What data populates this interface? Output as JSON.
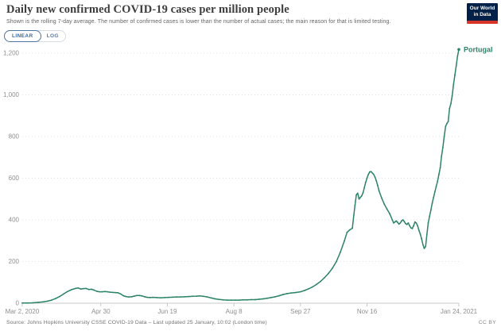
{
  "header": {
    "title": "Daily new confirmed COVID-19 cases per million people",
    "subtitle": "Shown is the rolling 7-day average. The number of confirmed cases is lower than the number of actual cases; the main reason for that is limited testing.",
    "logo_line1": "Our World",
    "logo_line2": "in Data"
  },
  "controls": {
    "linear_label": "LINEAR",
    "log_label": "LOG",
    "selected": "LINEAR"
  },
  "footer": {
    "source": "Source: Johns Hopkins University CSSE COVID-19 Data – Last updated 25 January, 10:02 (London time)",
    "license": "CC BY"
  },
  "colors": {
    "series_green": "#2c8465",
    "grid": "#e2e2e2",
    "axis": "#c8c8c8",
    "tick_text": "#8f8f8f",
    "logo_navy": "#002147",
    "logo_red": "#d8352a"
  },
  "chart_data": {
    "type": "line",
    "title": "Daily new confirmed COVID-19 cases per million people",
    "xlabel": "",
    "ylabel": "",
    "grid": "horizontal-dotted",
    "legend_position": "end-of-line-label",
    "ylim": [
      0,
      1200
    ],
    "y_ticks": [
      0,
      200,
      400,
      600,
      800,
      1000,
      1200
    ],
    "y_tick_labels": [
      "0",
      "200",
      "400",
      "600",
      "800",
      "1,000",
      "1,200"
    ],
    "xlim_days": [
      0,
      328
    ],
    "x_ticks": [
      {
        "label": "Mar 2, 2020",
        "day": 0
      },
      {
        "label": "Apr 30",
        "day": 59
      },
      {
        "label": "Jun 19",
        "day": 109
      },
      {
        "label": "Aug 8",
        "day": 159
      },
      {
        "label": "Sep 27",
        "day": 209
      },
      {
        "label": "Nov 16",
        "day": 259
      },
      {
        "label": "Jan 24, 2021",
        "day": 328
      }
    ],
    "series": [
      {
        "name": "Portugal",
        "color": "#2c8465",
        "points": [
          [
            0,
            1
          ],
          [
            4,
            1
          ],
          [
            8,
            2
          ],
          [
            12,
            4
          ],
          [
            16,
            7
          ],
          [
            19,
            10
          ],
          [
            22,
            15
          ],
          [
            25,
            22
          ],
          [
            28,
            32
          ],
          [
            31,
            44
          ],
          [
            34,
            56
          ],
          [
            37,
            65
          ],
          [
            40,
            71
          ],
          [
            42,
            73
          ],
          [
            44,
            68
          ],
          [
            46,
            70
          ],
          [
            48,
            71
          ],
          [
            50,
            66
          ],
          [
            52,
            67
          ],
          [
            54,
            63
          ],
          [
            56,
            57
          ],
          [
            58,
            55
          ],
          [
            60,
            55
          ],
          [
            62,
            56
          ],
          [
            64,
            55
          ],
          [
            66,
            53
          ],
          [
            68,
            52
          ],
          [
            70,
            51
          ],
          [
            72,
            50
          ],
          [
            74,
            44
          ],
          [
            76,
            36
          ],
          [
            78,
            32
          ],
          [
            80,
            30
          ],
          [
            82,
            31
          ],
          [
            84,
            34
          ],
          [
            86,
            37
          ],
          [
            88,
            37
          ],
          [
            90,
            35
          ],
          [
            92,
            31
          ],
          [
            94,
            28
          ],
          [
            96,
            27
          ],
          [
            98,
            28
          ],
          [
            101,
            27
          ],
          [
            104,
            26
          ],
          [
            107,
            27
          ],
          [
            110,
            28
          ],
          [
            113,
            29
          ],
          [
            116,
            30
          ],
          [
            119,
            30
          ],
          [
            122,
            31
          ],
          [
            125,
            32
          ],
          [
            128,
            33
          ],
          [
            131,
            34
          ],
          [
            133,
            35
          ],
          [
            136,
            33
          ],
          [
            139,
            30
          ],
          [
            142,
            25
          ],
          [
            145,
            21
          ],
          [
            148,
            18
          ],
          [
            151,
            16
          ],
          [
            154,
            15
          ],
          [
            157,
            15
          ],
          [
            160,
            15
          ],
          [
            163,
            15
          ],
          [
            166,
            16
          ],
          [
            169,
            16
          ],
          [
            172,
            17
          ],
          [
            175,
            17
          ],
          [
            178,
            19
          ],
          [
            181,
            21
          ],
          [
            184,
            24
          ],
          [
            187,
            27
          ],
          [
            190,
            31
          ],
          [
            193,
            36
          ],
          [
            196,
            42
          ],
          [
            199,
            46
          ],
          [
            202,
            49
          ],
          [
            205,
            51
          ],
          [
            209,
            55
          ],
          [
            212,
            61
          ],
          [
            215,
            69
          ],
          [
            218,
            78
          ],
          [
            221,
            90
          ],
          [
            224,
            104
          ],
          [
            227,
            122
          ],
          [
            230,
            143
          ],
          [
            233,
            168
          ],
          [
            236,
            200
          ],
          [
            239,
            245
          ],
          [
            242,
            300
          ],
          [
            244,
            340
          ],
          [
            246,
            352
          ],
          [
            248,
            360
          ],
          [
            249,
            420
          ],
          [
            250,
            470
          ],
          [
            251,
            520
          ],
          [
            252,
            528
          ],
          [
            253,
            500
          ],
          [
            254,
            508
          ],
          [
            255,
            515
          ],
          [
            256,
            530
          ],
          [
            257,
            555
          ],
          [
            258,
            580
          ],
          [
            259,
            600
          ],
          [
            260,
            618
          ],
          [
            261,
            630
          ],
          [
            262,
            632
          ],
          [
            263,
            625
          ],
          [
            264,
            618
          ],
          [
            265,
            605
          ],
          [
            266,
            588
          ],
          [
            267,
            565
          ],
          [
            268,
            540
          ],
          [
            270,
            505
          ],
          [
            272,
            475
          ],
          [
            274,
            452
          ],
          [
            276,
            430
          ],
          [
            278,
            400
          ],
          [
            279,
            385
          ],
          [
            280,
            390
          ],
          [
            281,
            395
          ],
          [
            282,
            388
          ],
          [
            283,
            380
          ],
          [
            284,
            385
          ],
          [
            285,
            395
          ],
          [
            286,
            400
          ],
          [
            287,
            392
          ],
          [
            288,
            382
          ],
          [
            289,
            378
          ],
          [
            290,
            385
          ],
          [
            291,
            372
          ],
          [
            292,
            362
          ],
          [
            293,
            358
          ],
          [
            294,
            372
          ],
          [
            295,
            390
          ],
          [
            296,
            385
          ],
          [
            297,
            372
          ],
          [
            298,
            350
          ],
          [
            299,
            332
          ],
          [
            300,
            310
          ],
          [
            301,
            282
          ],
          [
            302,
            263
          ],
          [
            303,
            272
          ],
          [
            304,
            330
          ],
          [
            305,
            385
          ],
          [
            306,
            418
          ],
          [
            307,
            448
          ],
          [
            308,
            480
          ],
          [
            309,
            508
          ],
          [
            310,
            535
          ],
          [
            311,
            560
          ],
          [
            312,
            585
          ],
          [
            313,
            618
          ],
          [
            314,
            650
          ],
          [
            315,
            705
          ],
          [
            316,
            748
          ],
          [
            317,
            800
          ],
          [
            318,
            848
          ],
          [
            319,
            862
          ],
          [
            320,
            872
          ],
          [
            321,
            935
          ],
          [
            322,
            958
          ],
          [
            323,
            995
          ],
          [
            324,
            1050
          ],
          [
            325,
            1095
          ],
          [
            326,
            1140
          ],
          [
            327,
            1185
          ],
          [
            328,
            1218
          ]
        ]
      }
    ]
  }
}
